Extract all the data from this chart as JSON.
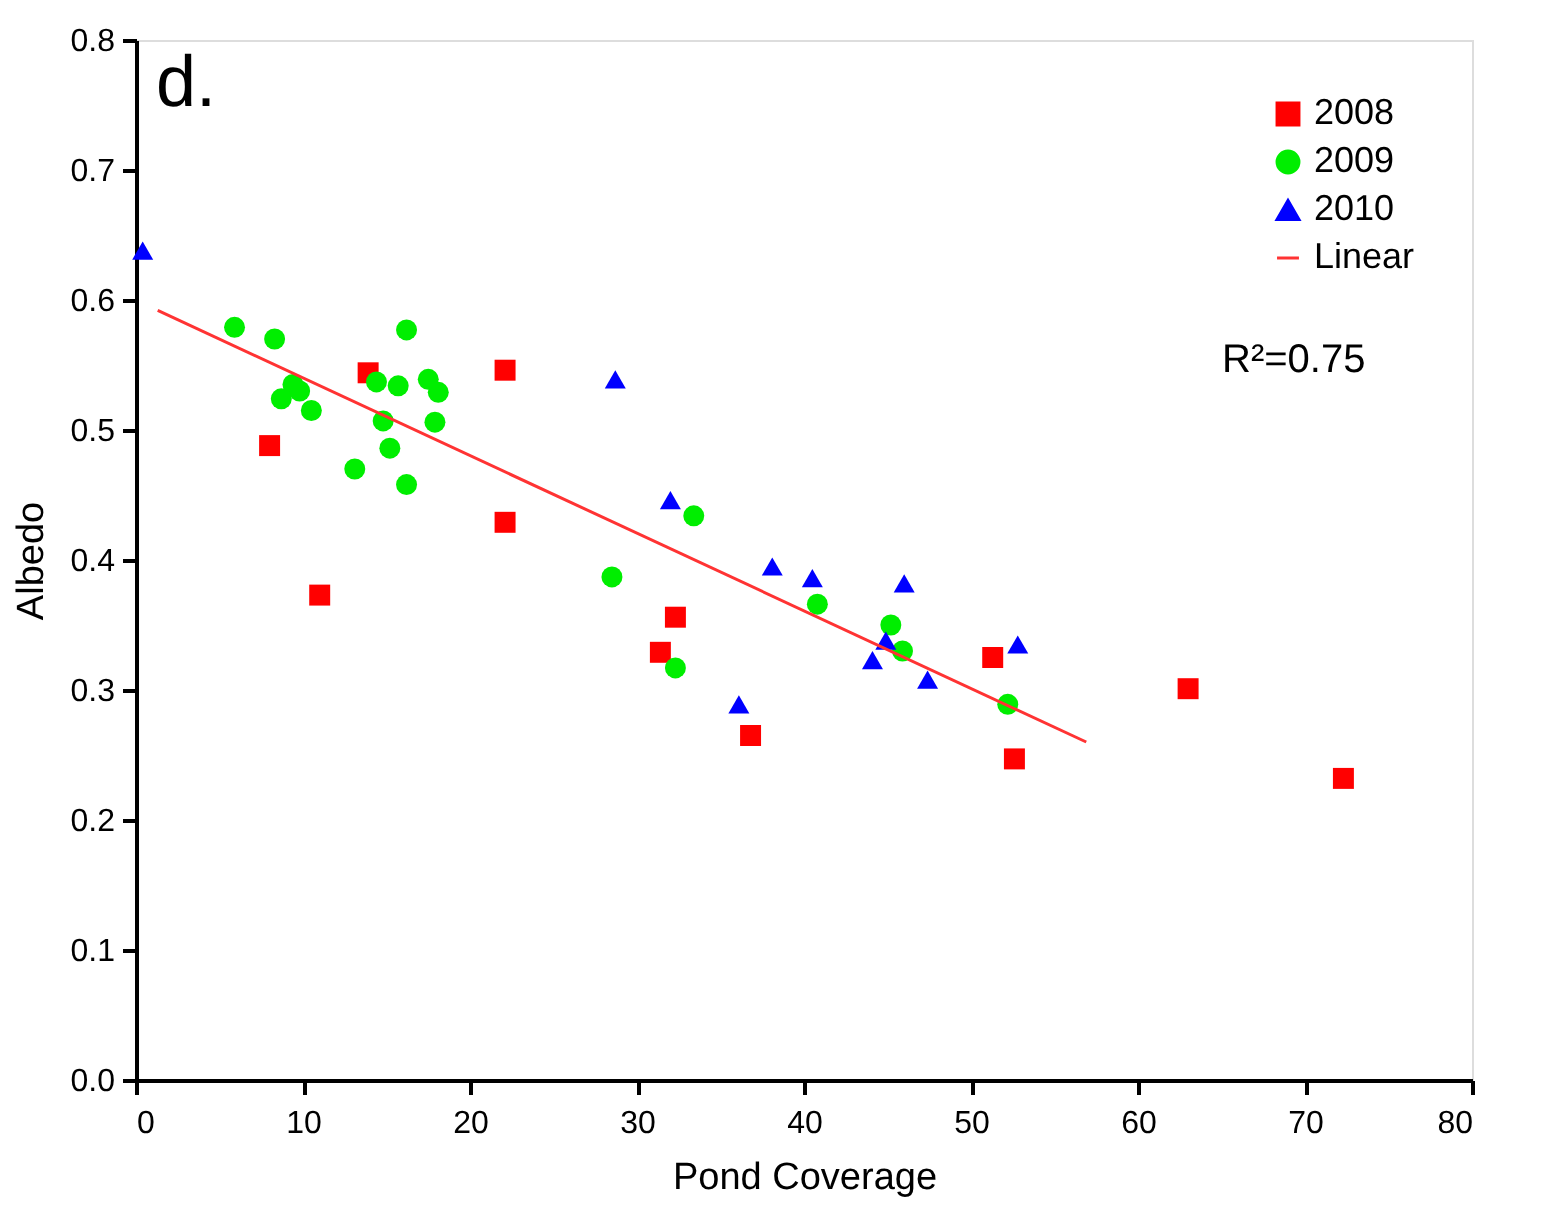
{
  "chart_data": {
    "type": "scatter",
    "xlabel": "Pond Coverage",
    "ylabel": "Albedo",
    "xlim": [
      0,
      80
    ],
    "ylim": [
      0,
      0.8
    ],
    "xticks": [
      0,
      10,
      20,
      30,
      40,
      50,
      60,
      70,
      80
    ],
    "yticks": [
      {
        "value": 0,
        "label": "0.0"
      },
      {
        "value": 0.1,
        "label": "0.1"
      },
      {
        "value": 0.2,
        "label": "0.2"
      },
      {
        "value": 0.3,
        "label": "0.3"
      },
      {
        "value": 0.4,
        "label": "0.4"
      },
      {
        "value": 0.5,
        "label": "0.5"
      },
      {
        "value": 0.6,
        "label": "0.6"
      },
      {
        "value": 0.7,
        "label": "0.7"
      },
      {
        "value": 0.8,
        "label": "0.8"
      }
    ],
    "grid": false,
    "legend": "top right",
    "annotations": [
      "d.",
      "R²=0.75"
    ],
    "series": [
      {
        "name": "2008",
        "color": "#ff0000",
        "marker": "square",
        "x": [
          13.9,
          22.1,
          8.0,
          22.1,
          11.0,
          32.3,
          31.4,
          36.8,
          51.3,
          52.6,
          63.0,
          72.3
        ],
        "values": [
          0.544,
          0.546,
          0.488,
          0.429,
          0.373,
          0.356,
          0.329,
          0.265,
          0.325,
          0.247,
          0.301,
          0.232
        ]
      },
      {
        "name": "2009",
        "color": "#00ee00",
        "marker": "circle",
        "x": [
          5.9,
          8.3,
          16.2,
          9.4,
          9.8,
          8.7,
          10.5,
          14.4,
          15.7,
          17.5,
          18.1,
          14.8,
          17.9,
          15.2,
          13.1,
          16.2,
          33.4,
          28.5,
          40.8,
          45.2,
          45.9,
          32.3,
          52.2
        ],
        "values": [
          0.579,
          0.57,
          0.577,
          0.535,
          0.53,
          0.524,
          0.515,
          0.537,
          0.534,
          0.539,
          0.529,
          0.507,
          0.506,
          0.486,
          0.47,
          0.458,
          0.434,
          0.387,
          0.366,
          0.35,
          0.33,
          0.317,
          0.289
        ]
      },
      {
        "name": "2010",
        "color": "#0000ff",
        "marker": "triangle",
        "x": [
          0.4,
          28.7,
          32.0,
          38.1,
          40.5,
          46.0,
          44.9,
          44.1,
          47.4,
          52.8,
          36.1
        ],
        "values": [
          0.638,
          0.539,
          0.446,
          0.395,
          0.386,
          0.382,
          0.338,
          0.323,
          0.308,
          0.335,
          0.289
        ]
      },
      {
        "name": "Linear",
        "type": "line",
        "color": "#ff3333",
        "marker": "none",
        "line_style": "solid",
        "x": [
          1.3,
          56.9
        ],
        "values": [
          0.592,
          0.26
        ]
      }
    ]
  }
}
